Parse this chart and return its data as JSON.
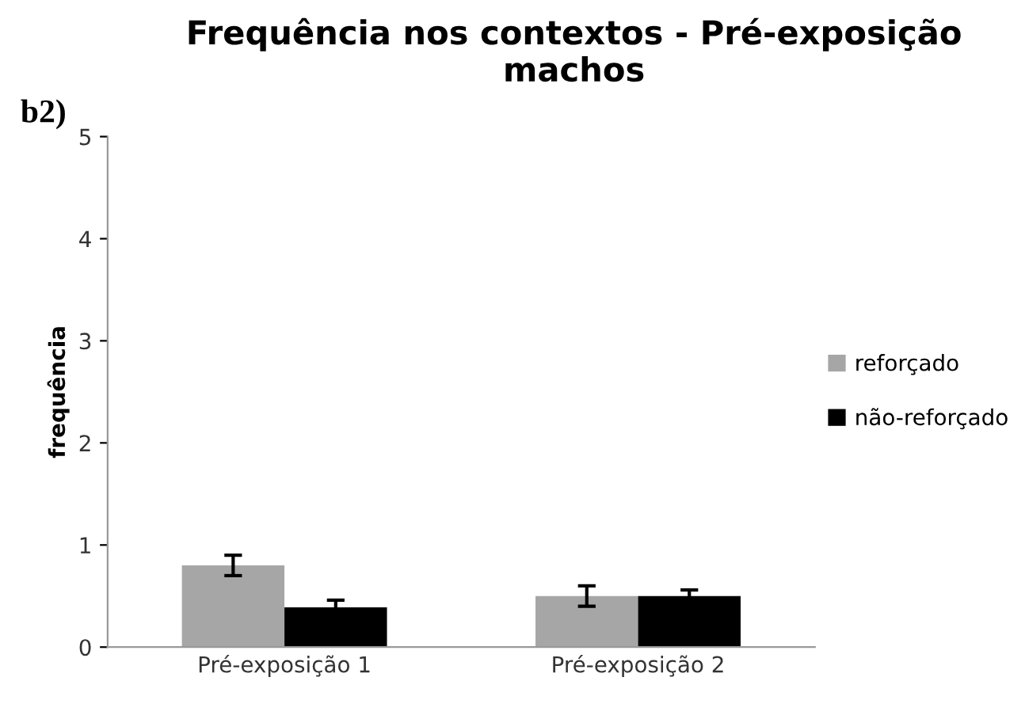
{
  "chart_data": {
    "type": "bar",
    "title": "Frequência nos contextos - Pré-exposição\nmachos",
    "ylabel": "frequência",
    "annotations": [
      "b2)"
    ],
    "categories": [
      "Pré-exposição 1",
      "Pré-exposição 2"
    ],
    "series": [
      {
        "name": "reforçado",
        "color": "#a6a6a6",
        "values": [
          0.8,
          0.5
        ],
        "errors": [
          0.1,
          0.1
        ]
      },
      {
        "name": "não-reforçado",
        "color": "#000000",
        "values": [
          0.39,
          0.5
        ],
        "errors": [
          0.07,
          0.06
        ]
      }
    ],
    "ylim": [
      0,
      5
    ],
    "yticks": [
      0,
      1,
      2,
      3,
      4,
      5
    ],
    "grid": false,
    "legend": "right"
  }
}
